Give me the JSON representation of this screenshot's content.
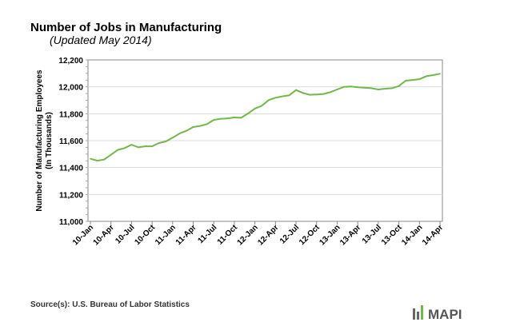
{
  "chart_data": {
    "type": "line",
    "title": "Number of Jobs in Manufacturing",
    "subtitle": "(Updated May 2014)",
    "ylabel": [
      "Number of Manufacturing  Employees",
      "(In Thousands)"
    ],
    "xlabel": "",
    "ylim": [
      11000,
      12200
    ],
    "yticks": [
      "11,000",
      "11,200",
      "11,400",
      "11,600",
      "11,800",
      "12,000",
      "12,200"
    ],
    "grid": true,
    "line_color": "#70b84a",
    "xtick_labels": [
      "10-Jan",
      "10-Apr",
      "10-Jul",
      "10-Oct",
      "11-Jan",
      "11-Apr",
      "11-Jul",
      "11-Oct",
      "12-Jan",
      "12-Apr",
      "12-Jul",
      "12-Oct",
      "13-Jan",
      "13-Apr",
      "13-Jul",
      "13-Oct",
      "14-Jan",
      "14-Apr"
    ],
    "series": [
      {
        "values": [
          11465,
          11451,
          11459,
          11495,
          11531,
          11545,
          11570,
          11550,
          11558,
          11558,
          11582,
          11594,
          11622,
          11653,
          11673,
          11701,
          11709,
          11723,
          11754,
          11762,
          11766,
          11772,
          11770,
          11802,
          11838,
          11859,
          11901,
          11919,
          11929,
          11937,
          11976,
          11954,
          11941,
          11943,
          11947,
          11960,
          11980,
          12000,
          12002,
          11996,
          11994,
          11990,
          11980,
          11986,
          11990,
          12006,
          12046,
          12051,
          12057,
          12079,
          12087,
          12097
        ]
      }
    ]
  },
  "footer": {
    "source": "Source(s): U.S. Bureau of Labor Statistics",
    "logo_text": "MAPI"
  }
}
